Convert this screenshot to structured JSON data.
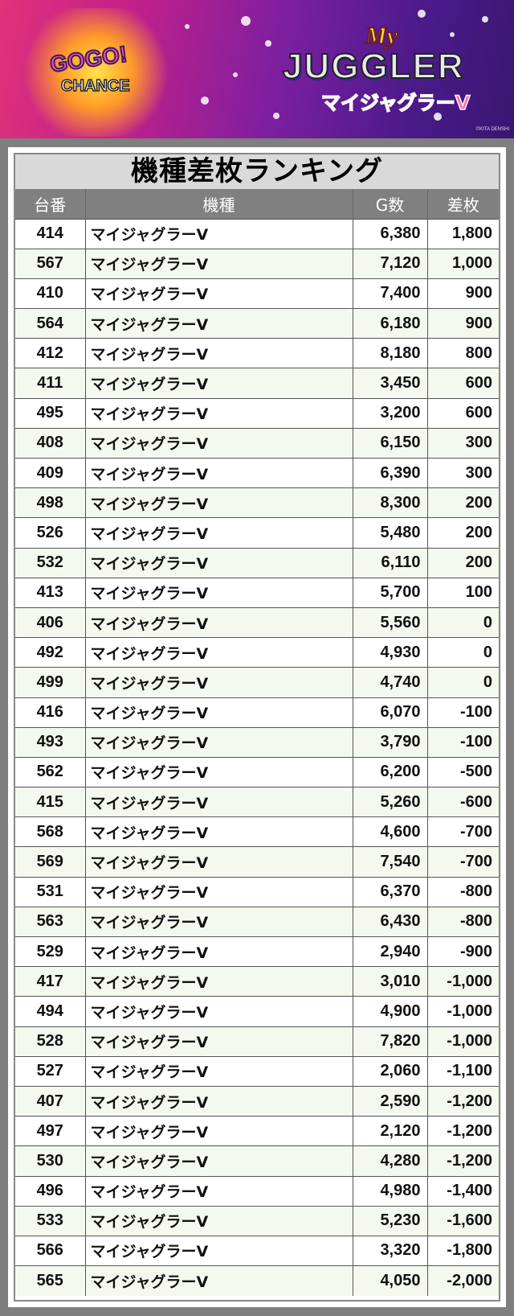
{
  "banner": {
    "logo_text": "My JUGGLER マイジャグラーV",
    "badge_text": "GOGO! CHANCE",
    "copyright": "©KITA DENSHI",
    "colors": [
      "#e0327a",
      "#7a1fa0",
      "#3a1670"
    ]
  },
  "title": "機種差枚ランキング",
  "headers": [
    "台番",
    "機種",
    "G数",
    "差枚"
  ],
  "rows": [
    [
      "414",
      "マイジャグラーV",
      "6,380",
      "1,800"
    ],
    [
      "567",
      "マイジャグラーV",
      "7,120",
      "1,000"
    ],
    [
      "410",
      "マイジャグラーV",
      "7,400",
      "900"
    ],
    [
      "564",
      "マイジャグラーV",
      "6,180",
      "900"
    ],
    [
      "412",
      "マイジャグラーV",
      "8,180",
      "800"
    ],
    [
      "411",
      "マイジャグラーV",
      "3,450",
      "600"
    ],
    [
      "495",
      "マイジャグラーV",
      "3,200",
      "600"
    ],
    [
      "408",
      "マイジャグラーV",
      "6,150",
      "300"
    ],
    [
      "409",
      "マイジャグラーV",
      "6,390",
      "300"
    ],
    [
      "498",
      "マイジャグラーV",
      "8,300",
      "200"
    ],
    [
      "526",
      "マイジャグラーV",
      "5,480",
      "200"
    ],
    [
      "532",
      "マイジャグラーV",
      "6,110",
      "200"
    ],
    [
      "413",
      "マイジャグラーV",
      "5,700",
      "100"
    ],
    [
      "406",
      "マイジャグラーV",
      "5,560",
      "0"
    ],
    [
      "492",
      "マイジャグラーV",
      "4,930",
      "0"
    ],
    [
      "499",
      "マイジャグラーV",
      "4,740",
      "0"
    ],
    [
      "416",
      "マイジャグラーV",
      "6,070",
      "-100"
    ],
    [
      "493",
      "マイジャグラーV",
      "3,790",
      "-100"
    ],
    [
      "562",
      "マイジャグラーV",
      "6,200",
      "-500"
    ],
    [
      "415",
      "マイジャグラーV",
      "5,260",
      "-600"
    ],
    [
      "568",
      "マイジャグラーV",
      "4,600",
      "-700"
    ],
    [
      "569",
      "マイジャグラーV",
      "7,540",
      "-700"
    ],
    [
      "531",
      "マイジャグラーV",
      "6,370",
      "-800"
    ],
    [
      "563",
      "マイジャグラーV",
      "6,430",
      "-800"
    ],
    [
      "529",
      "マイジャグラーV",
      "2,940",
      "-900"
    ],
    [
      "417",
      "マイジャグラーV",
      "3,010",
      "-1,000"
    ],
    [
      "494",
      "マイジャグラーV",
      "4,900",
      "-1,000"
    ],
    [
      "528",
      "マイジャグラーV",
      "7,820",
      "-1,000"
    ],
    [
      "527",
      "マイジャグラーV",
      "2,060",
      "-1,100"
    ],
    [
      "407",
      "マイジャグラーV",
      "2,590",
      "-1,200"
    ],
    [
      "497",
      "マイジャグラーV",
      "2,120",
      "-1,200"
    ],
    [
      "530",
      "マイジャグラーV",
      "4,280",
      "-1,200"
    ],
    [
      "496",
      "マイジャグラーV",
      "4,980",
      "-1,400"
    ],
    [
      "533",
      "マイジャグラーV",
      "5,230",
      "-1,600"
    ],
    [
      "566",
      "マイジャグラーV",
      "3,320",
      "-1,800"
    ],
    [
      "565",
      "マイジャグラーV",
      "4,050",
      "-2,000"
    ]
  ]
}
